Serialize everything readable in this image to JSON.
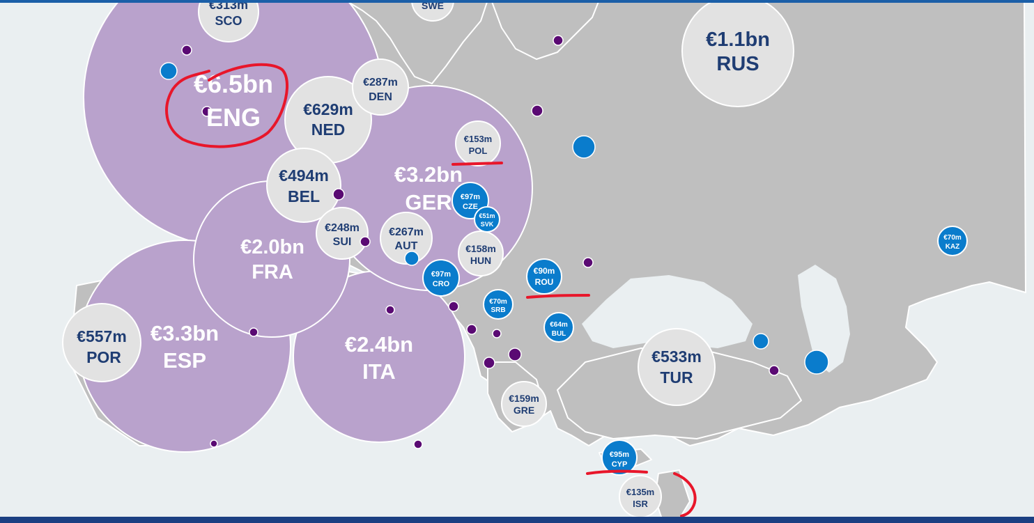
{
  "theme": {
    "sea": "#eaeff1",
    "land": "#bfbfbf",
    "border": "#ffffff",
    "big_circle": "#b9a2cc",
    "mid_circle": "#e2e2e2",
    "small_circle": "#0a7ccc",
    "dot_purple": "#5a0a73",
    "dot_blue": "#0a7ccc",
    "label_dark": "#1f3d73",
    "label_light": "#ffffff",
    "annotation": "#e8162a",
    "top_bar": "#1b5fa8",
    "taskbar": "#1b3f82"
  },
  "markets": [
    {
      "code": "ENG",
      "value": "€6.5bn",
      "tier": "large"
    },
    {
      "code": "ESP",
      "value": "€3.3bn",
      "tier": "large"
    },
    {
      "code": "GER",
      "value": "€3.2bn",
      "tier": "large"
    },
    {
      "code": "ITA",
      "value": "€2.4bn",
      "tier": "large"
    },
    {
      "code": "FRA",
      "value": "€2.0bn",
      "tier": "large"
    },
    {
      "code": "RUS",
      "value": "€1.1bn",
      "tier": "medium"
    },
    {
      "code": "NED",
      "value": "€629m",
      "tier": "medium"
    },
    {
      "code": "POR",
      "value": "€557m",
      "tier": "medium"
    },
    {
      "code": "TUR",
      "value": "€533m",
      "tier": "medium"
    },
    {
      "code": "BEL",
      "value": "€494m",
      "tier": "medium"
    },
    {
      "code": "SCO",
      "value": "€313m",
      "tier": "medium"
    },
    {
      "code": "DEN",
      "value": "€287m",
      "tier": "medium"
    },
    {
      "code": "AUT",
      "value": "€267m",
      "tier": "medium"
    },
    {
      "code": "SUI",
      "value": "€248m",
      "tier": "medium"
    },
    {
      "code": "GRE",
      "value": "€159m",
      "tier": "medium"
    },
    {
      "code": "HUN",
      "value": "€158m",
      "tier": "medium"
    },
    {
      "code": "POL",
      "value": "€153m",
      "tier": "medium"
    },
    {
      "code": "ISR",
      "value": "€135m",
      "tier": "medium"
    },
    {
      "code": "SWE",
      "value": "",
      "tier": "medium"
    },
    {
      "code": "CZE",
      "value": "€97m",
      "tier": "small"
    },
    {
      "code": "CRO",
      "value": "€97m",
      "tier": "small"
    },
    {
      "code": "CYP",
      "value": "€95m",
      "tier": "small"
    },
    {
      "code": "ROU",
      "value": "€90m",
      "tier": "small"
    },
    {
      "code": "SRB",
      "value": "€70m",
      "tier": "small"
    },
    {
      "code": "KAZ",
      "value": "€70m",
      "tier": "small"
    },
    {
      "code": "BUL",
      "value": "€64m",
      "tier": "small"
    },
    {
      "code": "SVK",
      "value": "€51m",
      "tier": "small"
    }
  ]
}
